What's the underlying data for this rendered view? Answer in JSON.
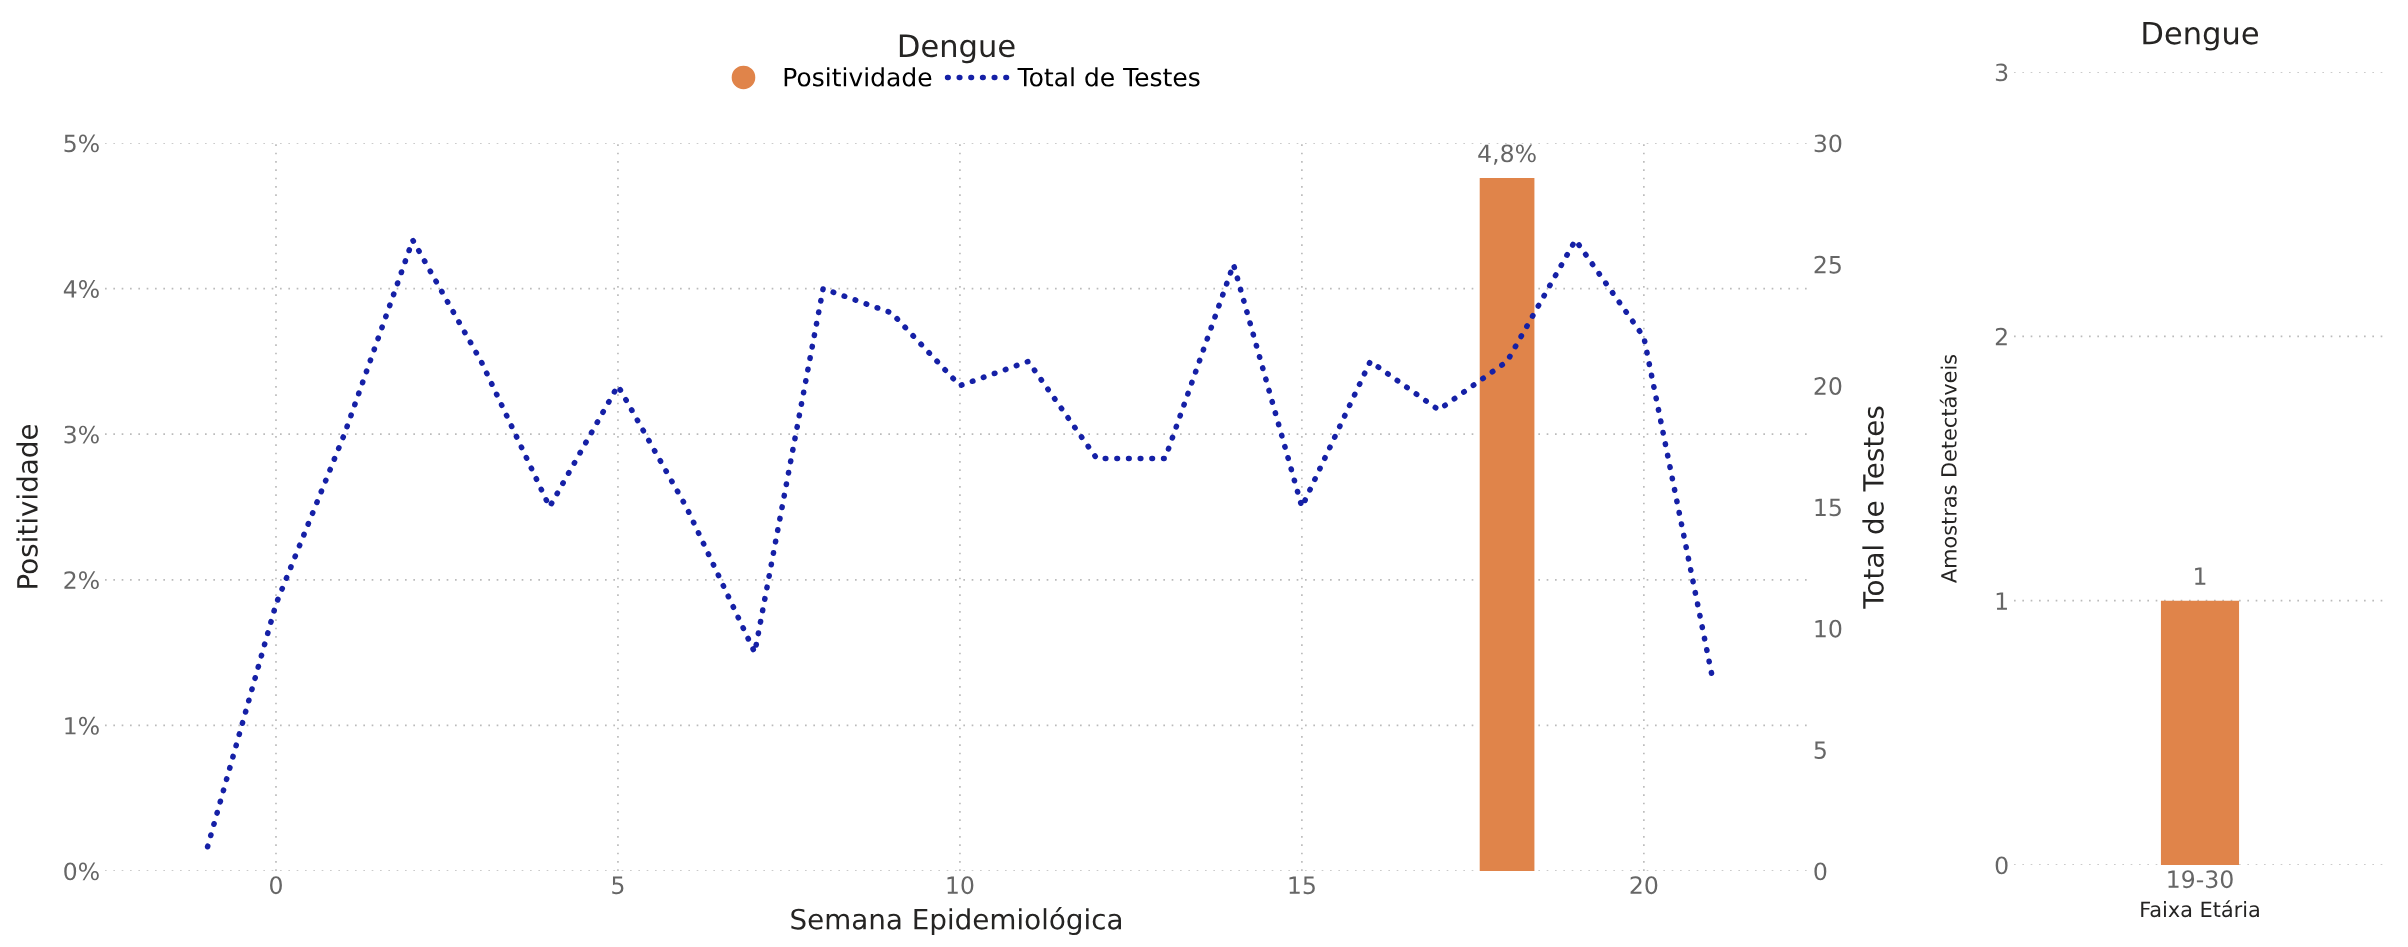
{
  "chart_data": [
    {
      "type": "line",
      "title": "Dengue",
      "xlabel": "Semana Epidemiológica",
      "ylabel": "Positividade",
      "y2label": "Total de Testes",
      "x": [
        -1,
        0,
        1,
        2,
        3,
        4,
        5,
        6,
        7,
        8,
        9,
        10,
        11,
        12,
        13,
        14,
        15,
        16,
        17,
        18,
        19,
        20,
        21
      ],
      "series": [
        {
          "name": "Positividade",
          "type": "bar",
          "color": "#e0844a",
          "values": [
            null,
            null,
            null,
            null,
            null,
            null,
            null,
            null,
            null,
            null,
            null,
            null,
            null,
            null,
            null,
            null,
            null,
            null,
            null,
            4.76,
            null,
            null,
            null
          ],
          "value_labels": [
            null,
            null,
            null,
            null,
            null,
            null,
            null,
            null,
            null,
            null,
            null,
            null,
            null,
            null,
            null,
            null,
            null,
            null,
            null,
            "4,8%",
            null,
            null,
            null
          ]
        },
        {
          "name": "Total de Testes",
          "type": "line",
          "axis": "y2",
          "color": "#1520a6",
          "line_style": "dotted",
          "values": [
            1,
            11,
            18,
            26,
            21,
            15,
            20,
            15,
            9,
            24,
            23,
            20,
            21,
            17,
            17,
            25,
            15,
            21,
            19,
            21,
            26,
            22,
            8
          ]
        }
      ],
      "xlim": [
        -2.5,
        22.4
      ],
      "xticks": [
        0,
        5,
        10,
        15,
        20
      ],
      "ylim": [
        0,
        5
      ],
      "yticks": [
        {
          "value": 0,
          "label": "0%"
        },
        {
          "value": 1,
          "label": "1%"
        },
        {
          "value": 2,
          "label": "2%"
        },
        {
          "value": 3,
          "label": "3%"
        },
        {
          "value": 4,
          "label": "4%"
        },
        {
          "value": 5,
          "label": "5%"
        }
      ],
      "y2lim": [
        0,
        30
      ],
      "y2ticks": [
        0,
        5,
        10,
        15,
        20,
        25,
        30
      ],
      "grid": true,
      "legend": "top"
    },
    {
      "type": "bar",
      "title": "Dengue",
      "xlabel": "Faixa Etária",
      "ylabel": "Amostras Detectáveis",
      "categories": [
        "19-30"
      ],
      "values": [
        1
      ],
      "color": "#e0844a",
      "data_labels": true,
      "ylim": [
        0,
        3
      ],
      "yticks": [
        0,
        1,
        2,
        3
      ],
      "grid": "y"
    }
  ]
}
